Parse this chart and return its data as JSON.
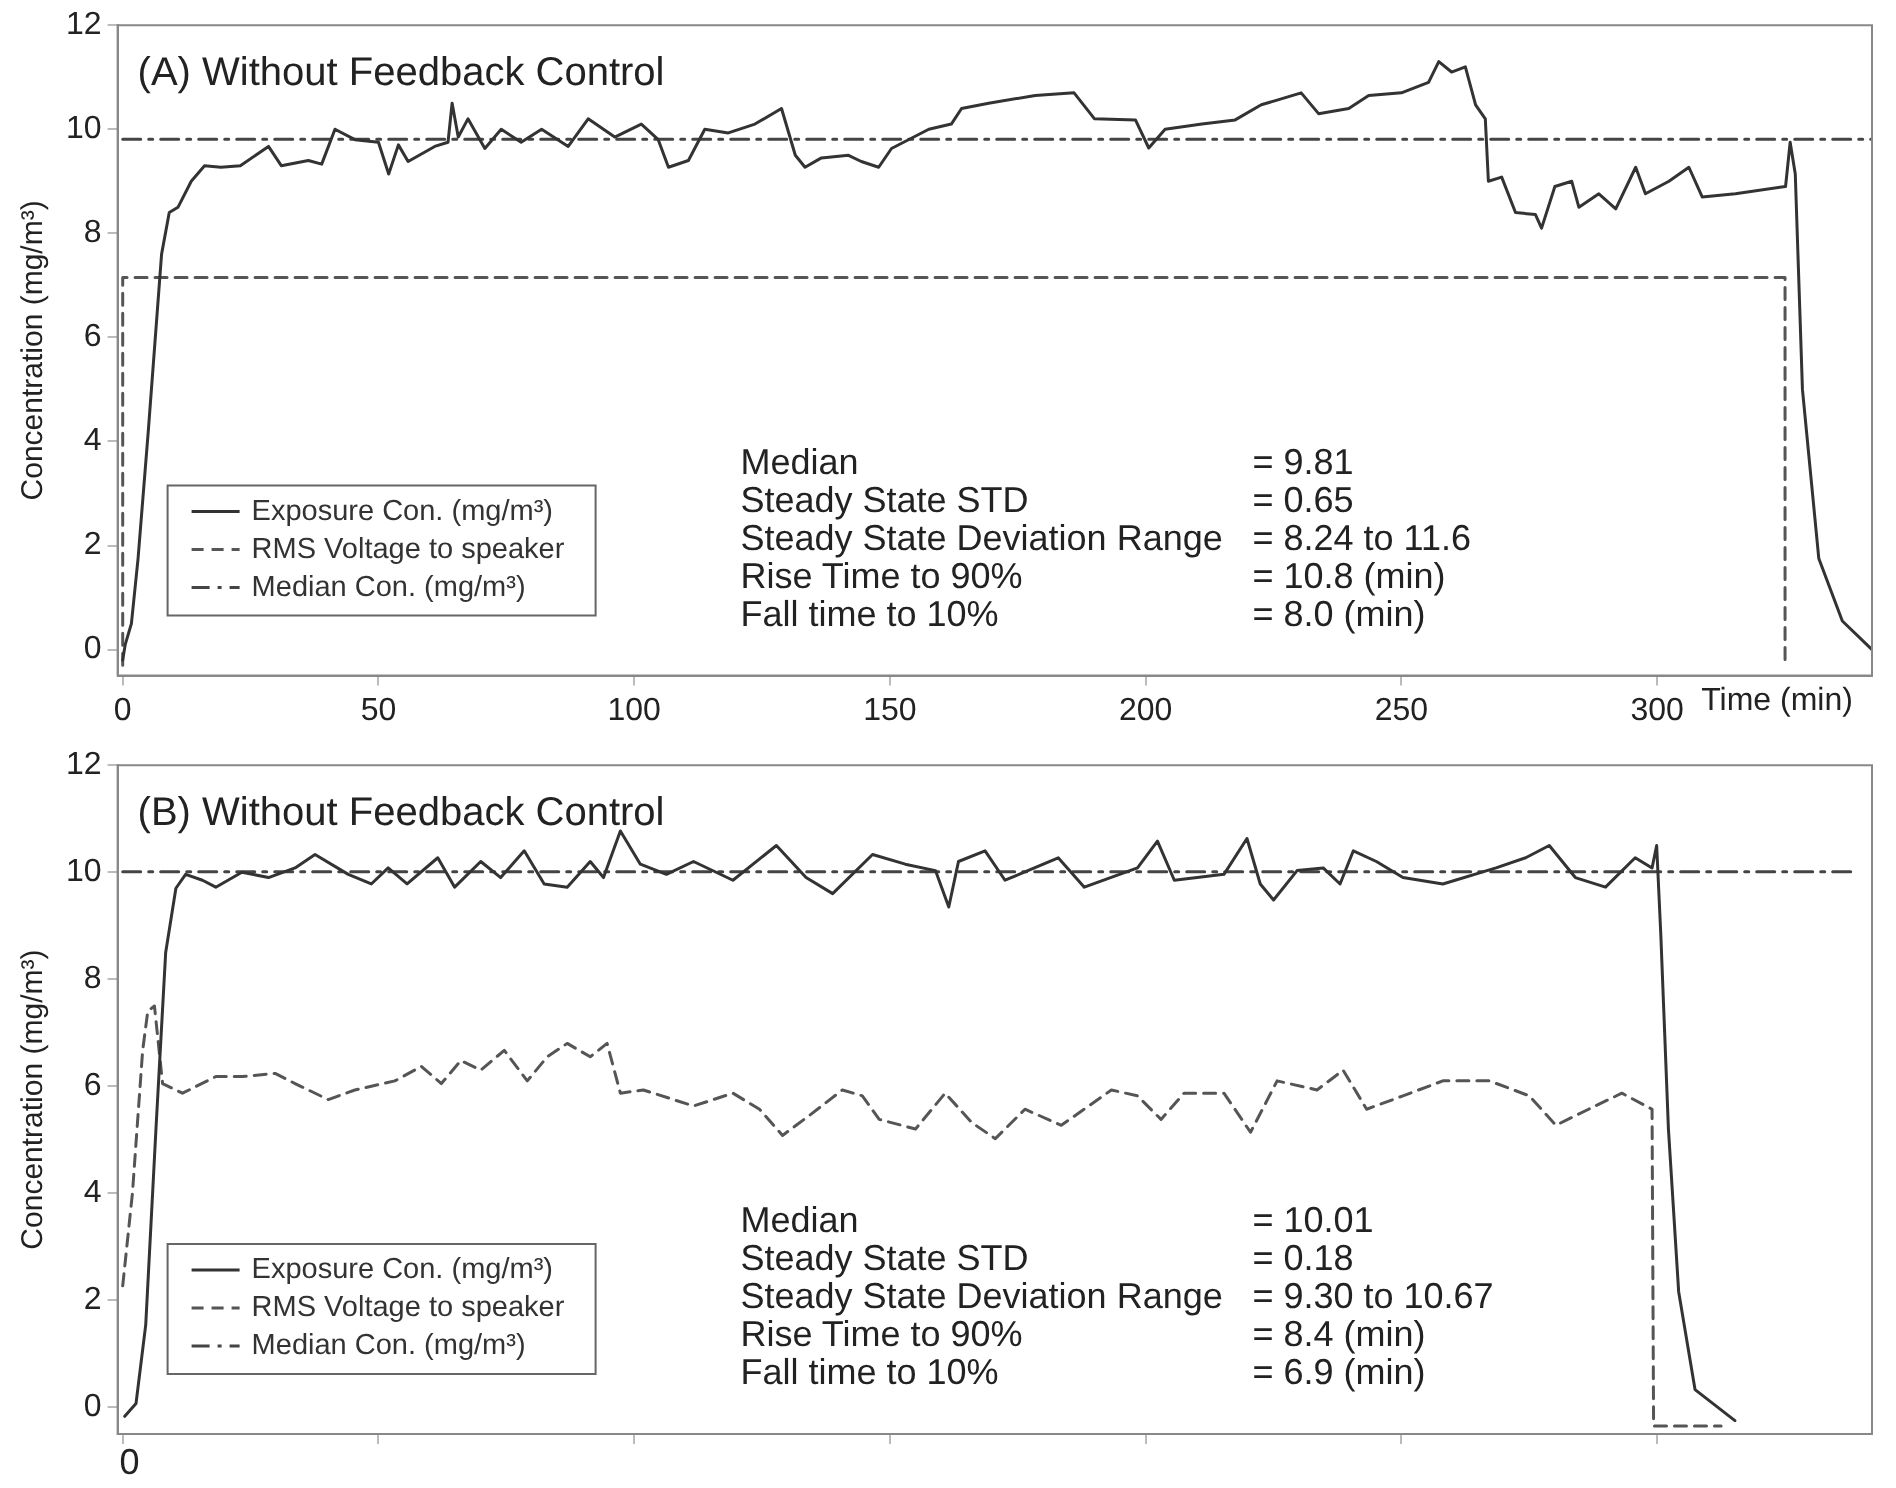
{
  "chart_data": [
    {
      "type": "line",
      "title": "(A) Without Feedback Control",
      "xlabel": "Time (min)",
      "ylabel": "Concentration (mg/m³)",
      "xlim": [
        -1,
        342
      ],
      "xticks": [
        0,
        50,
        100,
        150,
        200,
        250,
        300
      ],
      "ylim": [
        -0.5,
        12
      ],
      "yticks": [
        0,
        2,
        4,
        6,
        8,
        10,
        12
      ],
      "grid": false,
      "legend": "bottom left",
      "marker": "none",
      "annotations": [
        "Median",
        "= 9.81",
        "Steady State STD",
        "= 0.65",
        "Steady State Deviation Range",
        "= 8.24 to 11.6",
        "Rise Time to 90%",
        "= 10.8 (min)",
        "Fall time to 10%",
        "= 8.0 (min)"
      ],
      "series": [
        {
          "name": "Exposure Con. (mg/m³)",
          "color": "#333333",
          "line_style": "solid",
          "x": [
            0,
            0.5,
            1.7,
            3,
            5,
            6.3,
            7.6,
            9.1,
            10.8,
            13.4,
            16,
            19.2,
            23,
            28.5,
            31,
            36.3,
            38.9,
            41.5,
            45.4,
            50,
            52,
            53.9,
            55.8,
            61,
            63.6,
            64.4,
            65.6,
            67.5,
            70.8,
            74,
            77.9,
            81.9,
            87.1,
            91,
            96.2,
            101.4,
            104.7,
            106.7,
            110.6,
            113.8,
            118.4,
            123.6,
            128.8,
            131.5,
            133.4,
            136.6,
            141.9,
            144.4,
            147.8,
            150.3,
            157.6,
            162,
            164,
            169.3,
            178.4,
            186,
            190,
            198,
            200.6,
            203.8,
            211,
            217.5,
            222.6,
            230.4,
            233.8,
            239.7,
            243.6,
            250,
            255.3,
            257.3,
            259.8,
            262.5,
            264.5,
            266.4,
            267,
            269.6,
            272.3,
            276.2,
            277.4,
            280,
            283.3,
            284.7,
            288.6,
            291.9,
            295.8,
            297.7,
            302.3,
            306.2,
            308.8,
            315.3,
            325.1,
            326,
            327,
            328.4,
            331.6,
            336.2,
            342
          ],
          "values": [
            -0.2,
            0.1,
            0.5,
            1.75,
            4.2,
            5.9,
            7.6,
            8.4,
            8.5,
            9,
            9.3,
            9.27,
            9.3,
            9.67,
            9.3,
            9.4,
            9.33,
            10,
            9.8,
            9.75,
            9.14,
            9.7,
            9.38,
            9.67,
            9.75,
            10.5,
            9.85,
            10.2,
            9.63,
            10,
            9.75,
            10,
            9.67,
            10.2,
            9.85,
            10.1,
            9.8,
            9.27,
            9.4,
            10,
            9.93,
            10.1,
            10.4,
            9.5,
            9.27,
            9.45,
            9.5,
            9.38,
            9.27,
            9.63,
            10,
            10.1,
            10.4,
            10.5,
            10.65,
            10.7,
            10.2,
            10.18,
            9.64,
            10,
            10.1,
            10.18,
            10.47,
            10.7,
            10.3,
            10.4,
            10.65,
            10.7,
            10.9,
            11.3,
            11.1,
            11.2,
            10.47,
            10.2,
            9,
            9.08,
            8.4,
            8.36,
            8.1,
            8.9,
            9,
            8.5,
            8.76,
            8.47,
            9.27,
            8.76,
            9,
            9.27,
            8.7,
            8.76,
            8.9,
            9.75,
            9.14,
            5,
            1.75,
            0.55,
            0
          ]
        },
        {
          "name": "RMS Voltage to speaker",
          "color": "#555555",
          "line_style": "dashed",
          "x": [
            0,
            0,
            325,
            325
          ],
          "values": [
            -0.3,
            7.15,
            7.15,
            -0.3
          ]
        },
        {
          "name": "Median Con. (mg/m³)",
          "color": "#444444",
          "line_style": "dashdot",
          "x": [
            0,
            342
          ],
          "values": [
            9.81,
            9.81
          ]
        }
      ]
    },
    {
      "type": "line",
      "title": "(B) Without Feedback Control",
      "ylabel": "Concentration (mg/m³)",
      "tick_labels": "y",
      "xlim": [
        -1,
        342
      ],
      "xticks": [
        {
          "value": 0,
          "label": null
        },
        {
          "value": 50,
          "label": null
        },
        {
          "value": 100,
          "label": null
        },
        {
          "value": 150,
          "label": null
        },
        {
          "value": 200,
          "label": null
        },
        {
          "value": 250,
          "label": null
        },
        {
          "value": 300,
          "label": null
        }
      ],
      "ylim": [
        -0.5,
        12
      ],
      "yticks": [
        0,
        2,
        4,
        6,
        8,
        10,
        12
      ],
      "grid": false,
      "legend": "bottom left",
      "marker": "none",
      "annotations": [
        "0",
        "Median",
        "= 10.01",
        "Steady State STD",
        "= 0.18",
        "Steady State Deviation Range",
        "= 9.30 to 10.67",
        "Rise Time to 90%",
        "= 8.4 (min)",
        "Fall time to 10%",
        "= 6.9 (min)"
      ],
      "series": [
        {
          "name": "Exposure Con. (mg/m³)",
          "color": "#333333",
          "line_style": "solid",
          "x": [
            0.4,
            2.6,
            4.5,
            6.5,
            8.4,
            10.4,
            12.3,
            15.6,
            18.2,
            23.3,
            28.5,
            33.7,
            37.6,
            44.1,
            48.6,
            51.9,
            55.6,
            61.6,
            64.9,
            70,
            73.9,
            78.5,
            82.4,
            86.9,
            91.4,
            94,
            97.3,
            101.2,
            106.3,
            111.6,
            119.3,
            127.8,
            133.6,
            138.8,
            146.6,
            153,
            158.9,
            161.5,
            163.4,
            168.6,
            172.5,
            182.9,
            188,
            198.4,
            202.3,
            205.6,
            215.3,
            219.8,
            222.4,
            225,
            229.6,
            234.7,
            238,
            240.6,
            245.1,
            250.3,
            258.1,
            268.5,
            274.3,
            278.9,
            284,
            289.9,
            295.7,
            299,
            299.9,
            300.7,
            302.2,
            304.2,
            307.4,
            315.2
          ],
          "values": [
            -0.17,
            0.07,
            1.54,
            5.2,
            8.5,
            9.7,
            9.96,
            9.85,
            9.72,
            10,
            9.9,
            10.08,
            10.33,
            9.96,
            9.78,
            10.08,
            9.78,
            10.27,
            9.72,
            10.2,
            9.9,
            10.4,
            9.78,
            9.72,
            10.2,
            9.9,
            10.77,
            10.15,
            9.96,
            10.2,
            9.85,
            10.5,
            9.9,
            9.6,
            10.33,
            10.15,
            10.03,
            9.35,
            10.2,
            10.4,
            9.85,
            10.27,
            9.72,
            10.08,
            10.58,
            9.85,
            9.96,
            10.63,
            9.78,
            9.48,
            10.03,
            10.08,
            9.78,
            10.4,
            10.2,
            9.9,
            9.78,
            10.08,
            10.27,
            10.5,
            9.9,
            9.72,
            10.27,
            10.08,
            10.5,
            8.86,
            5.2,
            2.16,
            0.33,
            -0.25
          ]
        },
        {
          "name": "RMS Voltage to speaker",
          "color": "#555555",
          "line_style": "dashed",
          "x": [
            0,
            1.9,
            3.9,
            4.9,
            6.2,
            7.8,
            11.7,
            18.2,
            23.3,
            29.8,
            33.7,
            40.2,
            45.4,
            53.2,
            58.4,
            62.3,
            66.1,
            70,
            74.6,
            79.1,
            83,
            86.9,
            91.4,
            94.7,
            97.3,
            101.8,
            111.6,
            119.3,
            124.5,
            129,
            134.2,
            140.7,
            144.6,
            147.9,
            155,
            160.8,
            166,
            170.6,
            176.4,
            183.5,
            193.3,
            198.4,
            203,
            207.5,
            215.3,
            220.5,
            225.7,
            233.5,
            238.6,
            243.2,
            250.3,
            258.1,
            267.2,
            275,
            280.2,
            286.6,
            293.1,
            299,
            299.3,
            312.5
          ],
          "values": [
            2.27,
            4,
            6.67,
            7.4,
            7.5,
            6.05,
            5.87,
            6.18,
            6.18,
            6.24,
            6.05,
            5.75,
            5.93,
            6.1,
            6.37,
            6.05,
            6.48,
            6.3,
            6.67,
            6.1,
            6.55,
            6.8,
            6.55,
            6.8,
            5.87,
            5.93,
            5.63,
            5.87,
            5.57,
            5.08,
            5.45,
            5.93,
            5.82,
            5.38,
            5.2,
            5.87,
            5.32,
            5.02,
            5.57,
            5.27,
            5.93,
            5.82,
            5.38,
            5.87,
            5.87,
            5.14,
            6.1,
            5.93,
            6.3,
            5.57,
            5.82,
            6.1,
            6.1,
            5.82,
            5.27,
            5.57,
            5.87,
            5.57,
            -0.35,
            -0.35
          ]
        },
        {
          "name": "Median Con. (mg/m³)",
          "color": "#444444",
          "line_style": "dashdot",
          "x": [
            0,
            338
          ],
          "values": [
            10.01,
            10.01
          ]
        }
      ]
    }
  ]
}
